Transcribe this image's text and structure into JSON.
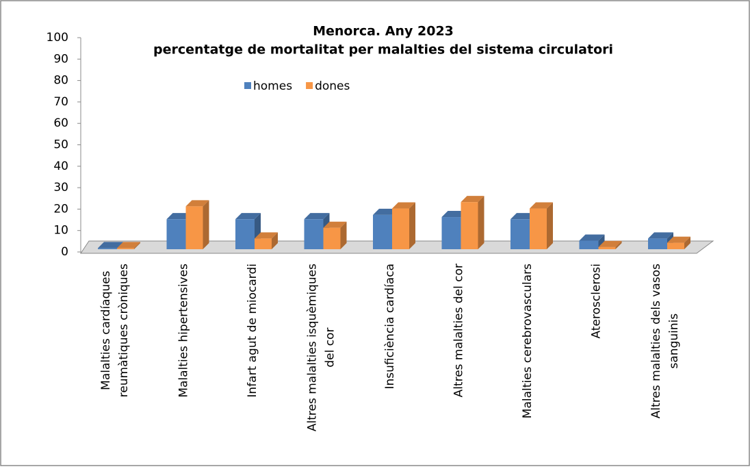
{
  "chart_data": {
    "type": "bar3d",
    "title": "Menorca. Any 2023",
    "subtitle": "percentatge de mortalitat per malalties del sistema circulatori",
    "categories": [
      "Malalties cardíaques reumàtiques cròniques",
      "Malalties hipertensives",
      "Infart agut de miocardi",
      "Altres malalties isquèmiques del cor",
      "Insuficiència cardíaca",
      "Altres malalties del cor",
      "Malalties cerebrovasculars",
      "Aterosclerosi",
      "Altres malalties dels vasos sanguinis"
    ],
    "series": [
      {
        "name": "homes",
        "color": "#4f81bd",
        "values": [
          0.5,
          14,
          14,
          14,
          16,
          15,
          14,
          4,
          5
        ]
      },
      {
        "name": "dones",
        "color": "#f79646",
        "values": [
          0.5,
          20,
          5,
          10,
          19,
          22,
          19,
          1,
          3
        ]
      }
    ],
    "ylim": [
      0,
      100
    ],
    "yticks": [
      0,
      10,
      20,
      30,
      40,
      50,
      60,
      70,
      80,
      90,
      100
    ],
    "legend": "top"
  }
}
